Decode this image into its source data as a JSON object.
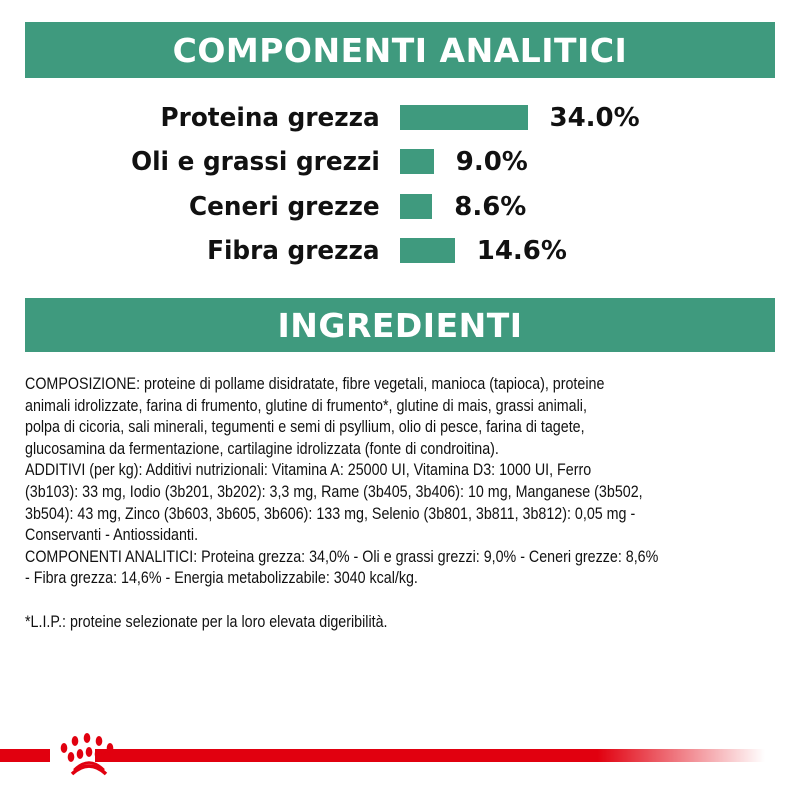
{
  "header1": "COMPONENTI ANALITICI",
  "header2": "INGREDIENTI",
  "analytics": [
    {
      "label": "Proteina grezza",
      "value": "34.0%",
      "percent": 34.0
    },
    {
      "label": "Oli e grassi grezzi",
      "value": "9.0%",
      "percent": 9.0
    },
    {
      "label": "Ceneri grezze",
      "value": "8.6%",
      "percent": 8.6
    },
    {
      "label": "Fibra grezza",
      "value": "14.6%",
      "percent": 14.6
    }
  ],
  "ingredients_lines": [
    "COMPOSIZIONE: proteine di pollame disidratate, fibre vegetali, manioca (tapioca), proteine",
    "animali idrolizzate, farina di frumento, glutine di frumento*, glutine di mais, grassi animali,",
    "polpa di cicoria, sali minerali, tegumenti e semi di psyllium, olio di pesce, farina di tagete,",
    "glucosamina da fermentazione, cartilagine idrolizzata (fonte di condroitina).",
    "ADDITIVI (per kg): Additivi nutrizionali: Vitamina A: 25000 UI, Vitamina D3: 1000 UI, Ferro",
    "(3b103): 33 mg, Iodio (3b201, 3b202): 3,3 mg, Rame (3b405, 3b406): 10 mg, Manganese (3b502,",
    "3b504): 43 mg, Zinco (3b603, 3b605, 3b606): 133 mg, Selenio (3b801, 3b811, 3b812): 0,05 mg -",
    "Conservanti - Antiossidanti.",
    "COMPONENTI ANALITICI: Proteina grezza: 34,0% - Oli e grassi grezzi: 9,0% - Ceneri grezze: 8,6%",
    "- Fibra grezza: 14,6% - Energia metabolizzabile: 3040 kcal/kg.",
    "",
    "*L.I.P.: proteine selezionate per la loro elevata digeribilità."
  ],
  "colors": {
    "accent": "#3f9a7e",
    "brand_red": "#e1000f"
  },
  "logo": "royal-canin-crown"
}
